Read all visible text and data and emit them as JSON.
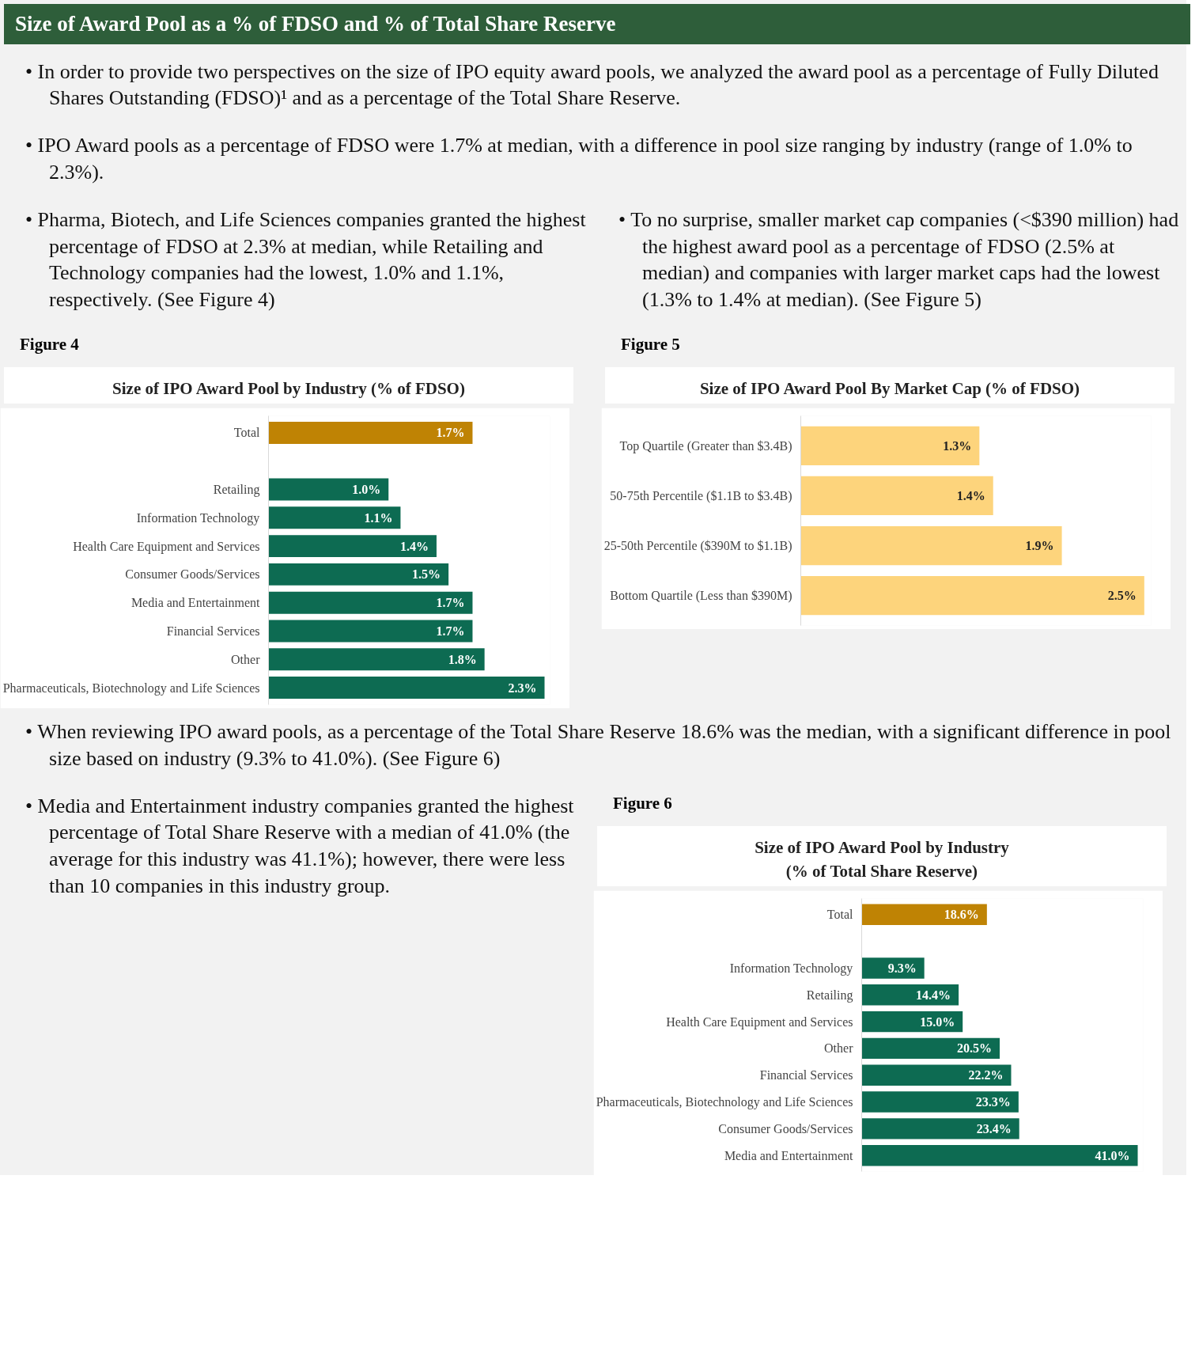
{
  "chart_data": [
    {
      "type": "other",
      "title": "Size of Award Pool as a % of FDSO and % of Total Share Reserve",
      "annotations": [
        "• In order to provide two perspectives on the size of IPO equity award pools, we analyzed the award pool as a percentage of Fully Diluted Shares Outstanding (FDSO)¹ and as a percentage of the Total Share Reserve.",
        "• IPO Award pools as a percentage of FDSO were 1.7% at median, with a difference in pool size ranging by industry (range of 1.0% to 2.3%).",
        "• Pharma, Biotech, and Life Sciences companies granted the highest percentage of FDSO at 2.3% at median, while Retailing and Technology companies had the lowest, 1.0% and 1.1%, respectively. (See Figure 4)",
        "• To no surprise, smaller market cap companies (<$390 million) had the highest award pool as a percentage of FDSO (2.5% at median) and companies with larger market caps had the lowest (1.3% to 1.4% at median). (See Figure 5)",
        "• When reviewing IPO award pools, as a percentage of the Total Share Reserve 18.6% was the median, with a significant difference in pool size based on industry (9.3% to 41.0%). (See Figure 6)",
        "• Media and Entertainment industry companies granted the highest percentage of Total Share Reserve with a median of 41.0% (the average for this industry was 41.1%); however, there were less than 10 companies in this industry group."
      ]
    },
    {
      "type": "bar",
      "orientation": "horizontal",
      "title": "Size of IPO Award Pool by Industry (% of FDSO)",
      "annotations": [
        "Figure 4"
      ],
      "categories": [
        "Total",
        null,
        "Retailing",
        "Information Technology",
        "Health Care Equipment and Services",
        "Consumer Goods/Services",
        "Media and Entertainment",
        "Financial Services",
        "Other",
        "Pharmaceuticals, Biotechnology and Life Sciences"
      ],
      "values": [
        1.7,
        null,
        1.0,
        1.1,
        1.4,
        1.5,
        1.7,
        1.7,
        1.8,
        2.3
      ],
      "value_labels": [
        "1.7%",
        null,
        "1.0%",
        "1.1%",
        "1.4%",
        "1.5%",
        "1.7%",
        "1.7%",
        "1.8%",
        "2.3%"
      ],
      "colors": [
        "#bf8304",
        null,
        "#0d6b52",
        "#0d6b52",
        "#0d6b52",
        "#0d6b52",
        "#0d6b52",
        "#0d6b52",
        "#0d6b52",
        "#0d6b52"
      ]
    },
    {
      "type": "bar",
      "orientation": "horizontal",
      "title": "Size of IPO Award Pool By Market Cap (% of FDSO)",
      "annotations": [
        "Figure 5"
      ],
      "categories": [
        "Top Quartile (Greater than $3.4B)",
        "50-75th Percentile ($1.1B to $3.4B)",
        "25-50th Percentile ($390M to $1.1B)",
        "Bottom Quartile (Less than $390M)"
      ],
      "values": [
        1.3,
        1.4,
        1.9,
        2.5
      ],
      "value_labels": [
        "1.3%",
        "1.4%",
        "1.9%",
        "2.5%"
      ],
      "colors": [
        "#fdd47c",
        "#fdd47c",
        "#fdd47c",
        "#fdd47c"
      ]
    },
    {
      "type": "bar",
      "orientation": "horizontal",
      "title": "Size of IPO Award Pool by Industry\n(% of Total Share Reserve)",
      "annotations": [
        "Figure 6"
      ],
      "categories": [
        "Total",
        null,
        "Information Technology",
        "Retailing",
        "Health Care Equipment and Services",
        "Other",
        "Financial Services",
        "Pharmaceuticals, Biotechnology and Life Sciences",
        "Consumer Goods/Services",
        "Media and Entertainment"
      ],
      "values": [
        18.6,
        null,
        9.3,
        14.4,
        15.0,
        20.5,
        22.2,
        23.3,
        23.4,
        41.0
      ],
      "value_labels": [
        "18.6%",
        null,
        "9.3%",
        "14.4%",
        "15.0%",
        "20.5%",
        "22.2%",
        "23.3%",
        "23.4%",
        "41.0%"
      ],
      "colors": [
        "#bf8304",
        null,
        "#0d6b52",
        "#0d6b52",
        "#0d6b52",
        "#0d6b52",
        "#0d6b52",
        "#0d6b52",
        "#0d6b52",
        "#0d6b52"
      ]
    }
  ]
}
